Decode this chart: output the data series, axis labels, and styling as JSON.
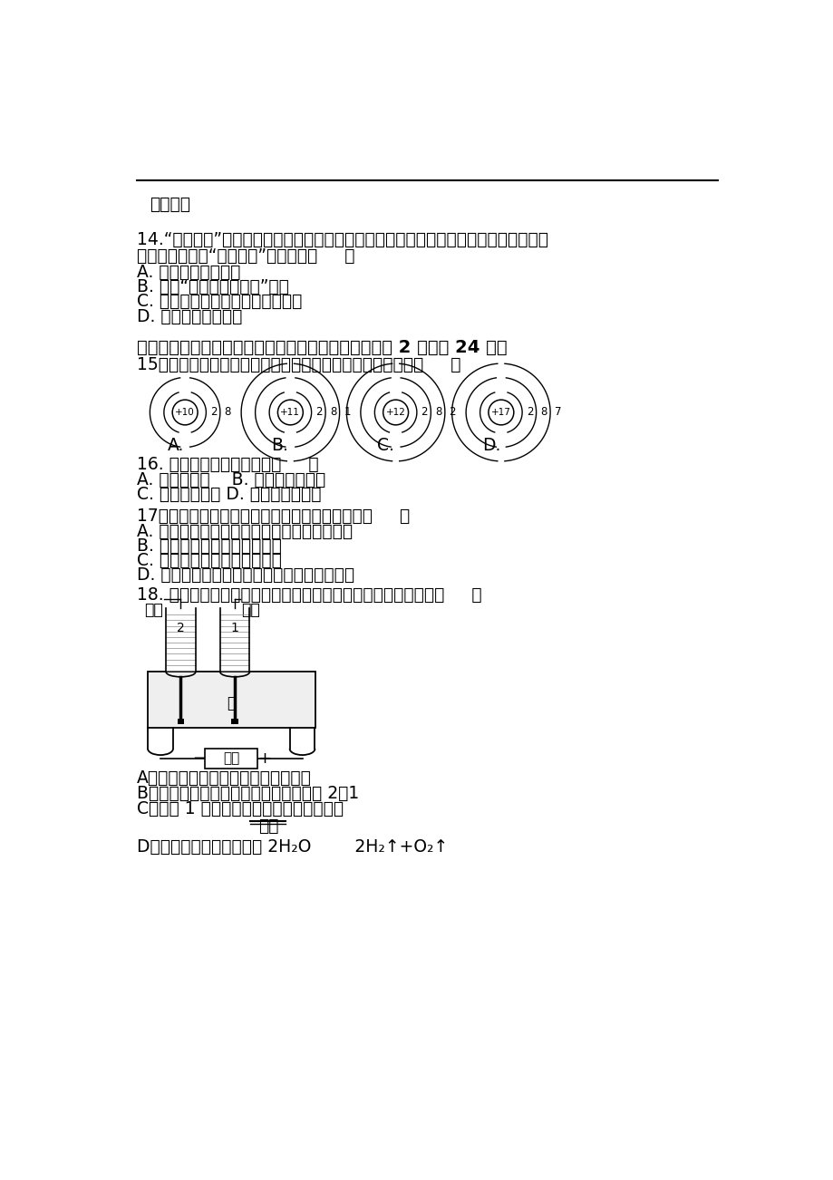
{
  "bg_color": "#ffffff",
  "text_color": "#000000",
  "content": {
    "line_top": "加热液体",
    "q14_title": "14.“低碳生活”是指在生活作息时减少能量耗用，使二氧化碳排放降低的一种时尚生活方",
    "q14_title2": "式．下列不符合“低碳生活”主题的是（     ）",
    "q14_A": "A. 用旧报纸制铅笔杆",
    "q14_B": "B. 参加“地球熄灯一小时”活动",
    "q14_C": "C. 开发回收利用二氧化碳的新技术",
    "q14_D": "D. 深秋时节焚烧落叶",
    "section2_title": "二、选择题．（每小题只有一个选项符合题意，每小题 2 分，共 24 分）",
    "q15_title": "15．下列原子结构示意图所表示元素的化学性质最稳定的是（     ）",
    "q16_title": "16. 由同种元素组成的物质（     ）",
    "q16_A": "A. 一定是单质    B. 一定不是混合物",
    "q16_B": "C. 一定是纯净物 D. 一定不是化合物",
    "q17_title": "17．下列有关分子、原子、离子的说法正确的是（     ）",
    "q17_A": "A. 一种分子、原子、离子都可以直接构成物质",
    "q17_B": "B. 原子和离子都是带电的粒子",
    "q17_C": "C. 原子是最小粒子，不可再分",
    "q17_D": "D. 分子、原子、离子都能保持物质的化学性质",
    "q18_title": "18. 如图是水的电解实验装置图，关于该实验的说法不正确的是（     ）",
    "q18_label_H": "氢气",
    "q18_label_O": "氧气",
    "q18_A": "A．该实验的主要目的是验证水的组成",
    "q18_B": "B．水电解产生的氢气和氧气的质量比是 2：1",
    "q18_C": "C．试管 1 中的气体能使带火星的木条复燃",
    "q18_above": "通电",
    "q18_D": "D．电解水的化学方程式是 2H₂O        2H₂↑+O₂↑"
  }
}
